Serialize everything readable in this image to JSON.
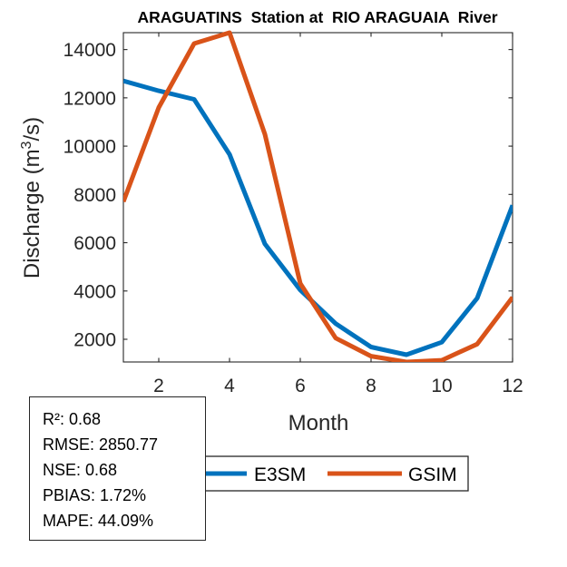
{
  "chart_data": {
    "type": "line",
    "title": "ARAGUATINS  Station at  RIO ARAGUAIA  River",
    "xlabel": "Month",
    "ylabel_main": "Discharge (m",
    "ylabel_sup": "3",
    "ylabel_tail": "/s)",
    "xlim": [
      1,
      12
    ],
    "ylim": [
      1060,
      14700
    ],
    "xticks": [
      2,
      4,
      6,
      8,
      10,
      12
    ],
    "yticks": [
      2000,
      4000,
      6000,
      8000,
      10000,
      12000,
      14000
    ],
    "grid": false,
    "x": [
      1,
      2,
      3,
      4,
      5,
      6,
      7,
      8,
      9,
      10,
      11,
      12
    ],
    "series": [
      {
        "name": "E3SM",
        "color": "#0072BD",
        "values": [
          12700,
          12290,
          11940,
          9660,
          5950,
          4040,
          2650,
          1680,
          1360,
          1880,
          3700,
          7550
        ]
      },
      {
        "name": "GSIM",
        "color": "#D95319",
        "values": [
          7700,
          11600,
          14250,
          14700,
          10490,
          4310,
          2050,
          1300,
          1060,
          1130,
          1800,
          3740
        ]
      }
    ],
    "legend_placement": "bottom-center"
  },
  "stats": {
    "lines": [
      "R²: 0.68",
      "RMSE: 2850.77",
      "NSE: 0.68",
      "PBIAS: 1.72%",
      "MAPE: 44.09%"
    ]
  }
}
